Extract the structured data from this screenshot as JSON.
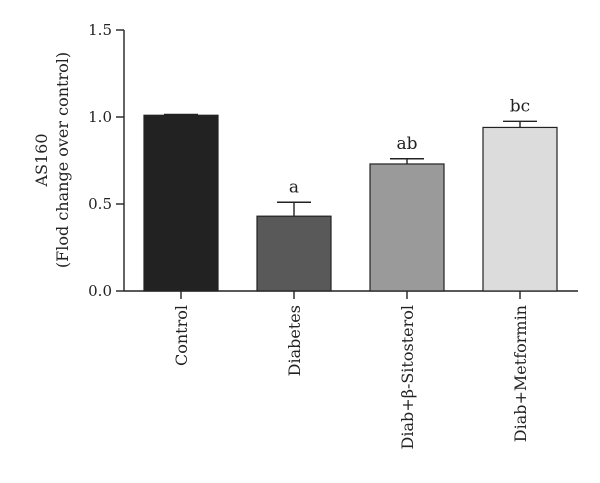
{
  "chart_data": {
    "type": "bar",
    "title": "",
    "ylabel_line1": "AS160",
    "ylabel_line2": "(Flod change over control)",
    "xlabel": "",
    "ylim": [
      0,
      1.5
    ],
    "yticks": [
      0.0,
      0.5,
      1.0,
      1.5
    ],
    "ytick_labels": [
      "0.0",
      "0.5",
      "1.0",
      "1.5"
    ],
    "categories": [
      "Control",
      "Diabetes",
      "Diab+β-Sitosterol",
      "Diab+Metformin"
    ],
    "values": [
      1.01,
      0.43,
      0.73,
      0.94
    ],
    "errors": [
      0.005,
      0.08,
      0.03,
      0.035
    ],
    "significance_labels": [
      "",
      "a",
      "ab",
      "bc"
    ],
    "bar_colors": [
      "#222222",
      "#595959",
      "#9a9a9a",
      "#dcdcdc"
    ],
    "grid": false,
    "legend": "none"
  }
}
